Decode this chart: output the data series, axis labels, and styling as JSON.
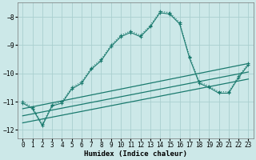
{
  "xlabel": "Humidex (Indice chaleur)",
  "bg_color": "#cce8e8",
  "line_color": "#1a7a6e",
  "grid_color": "#aacfcf",
  "xlim": [
    -0.5,
    23.5
  ],
  "ylim": [
    -12.3,
    -7.5
  ],
  "yticks": [
    -12,
    -11,
    -10,
    -9,
    -8
  ],
  "xticks": [
    0,
    1,
    2,
    3,
    4,
    5,
    6,
    7,
    8,
    9,
    10,
    11,
    12,
    13,
    14,
    15,
    16,
    17,
    18,
    19,
    20,
    21,
    22,
    23
  ],
  "line1_x": [
    0,
    1,
    2,
    3,
    4,
    5,
    6,
    7,
    8,
    9,
    10,
    11,
    12,
    13,
    14,
    15,
    16,
    17,
    18,
    19,
    20,
    21,
    22,
    23
  ],
  "line1_y": [
    -11.0,
    -11.2,
    -11.8,
    -11.1,
    -11.0,
    -10.5,
    -10.3,
    -9.8,
    -9.5,
    -9.0,
    -8.65,
    -8.5,
    -8.65,
    -8.3,
    -7.8,
    -7.85,
    -8.2,
    -9.4,
    -10.3,
    -10.45,
    -10.65,
    -10.65,
    -10.1,
    -9.65
  ],
  "line2_x": [
    0,
    1,
    2,
    3,
    4,
    5,
    6,
    7,
    8,
    9,
    10,
    11,
    12,
    13,
    14,
    15,
    16,
    17,
    18,
    19,
    20,
    21,
    22,
    23
  ],
  "line2_y": [
    -11.05,
    -11.25,
    -11.85,
    -11.15,
    -11.05,
    -10.55,
    -10.35,
    -9.85,
    -9.55,
    -9.05,
    -8.7,
    -8.55,
    -8.7,
    -8.35,
    -7.85,
    -7.9,
    -8.25,
    -9.45,
    -10.35,
    -10.5,
    -10.7,
    -10.7,
    -10.15,
    -9.7
  ],
  "line3_x": [
    0,
    23
  ],
  "line3_y": [
    -11.25,
    -9.65
  ],
  "line4_x": [
    0,
    23
  ],
  "line4_y": [
    -11.5,
    -9.95
  ],
  "line5_x": [
    0,
    23
  ],
  "line5_y": [
    -11.75,
    -10.2
  ],
  "xlabel_fontsize": 6.5,
  "tick_fontsize": 5.5
}
